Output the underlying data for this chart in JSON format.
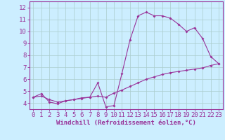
{
  "xlabel": "Windchill (Refroidissement éolien,°C)",
  "background_color": "#cceeff",
  "grid_color": "#aacccc",
  "line_color": "#993399",
  "spine_color": "#993399",
  "tick_color": "#993399",
  "xlim": [
    -0.5,
    23.5
  ],
  "ylim": [
    3.5,
    12.5
  ],
  "xticks": [
    0,
    1,
    2,
    3,
    4,
    5,
    6,
    7,
    8,
    9,
    10,
    11,
    12,
    13,
    14,
    15,
    16,
    17,
    18,
    19,
    20,
    21,
    22,
    23
  ],
  "yticks": [
    4,
    5,
    6,
    7,
    8,
    9,
    10,
    11,
    12
  ],
  "line1_x": [
    0,
    1,
    2,
    3,
    4,
    5,
    6,
    7,
    8,
    9,
    10,
    11,
    12,
    13,
    14,
    15,
    16,
    17,
    18,
    19,
    20,
    21,
    22,
    23
  ],
  "line1_y": [
    4.5,
    4.8,
    4.1,
    3.95,
    4.2,
    4.3,
    4.4,
    4.5,
    5.7,
    3.7,
    3.8,
    6.5,
    9.3,
    11.3,
    11.6,
    11.3,
    11.3,
    11.1,
    10.6,
    10.0,
    10.3,
    9.4,
    7.9,
    7.3
  ],
  "line2_x": [
    0,
    1,
    2,
    3,
    4,
    5,
    6,
    7,
    8,
    9,
    10,
    11,
    12,
    13,
    14,
    15,
    16,
    17,
    18,
    19,
    20,
    21,
    22,
    23
  ],
  "line2_y": [
    4.5,
    4.6,
    4.3,
    4.1,
    4.2,
    4.3,
    4.45,
    4.5,
    4.6,
    4.5,
    4.85,
    5.1,
    5.4,
    5.7,
    6.0,
    6.2,
    6.4,
    6.55,
    6.65,
    6.75,
    6.85,
    6.95,
    7.15,
    7.3
  ],
  "tick_fontsize": 6.5,
  "label_fontsize": 6.5
}
